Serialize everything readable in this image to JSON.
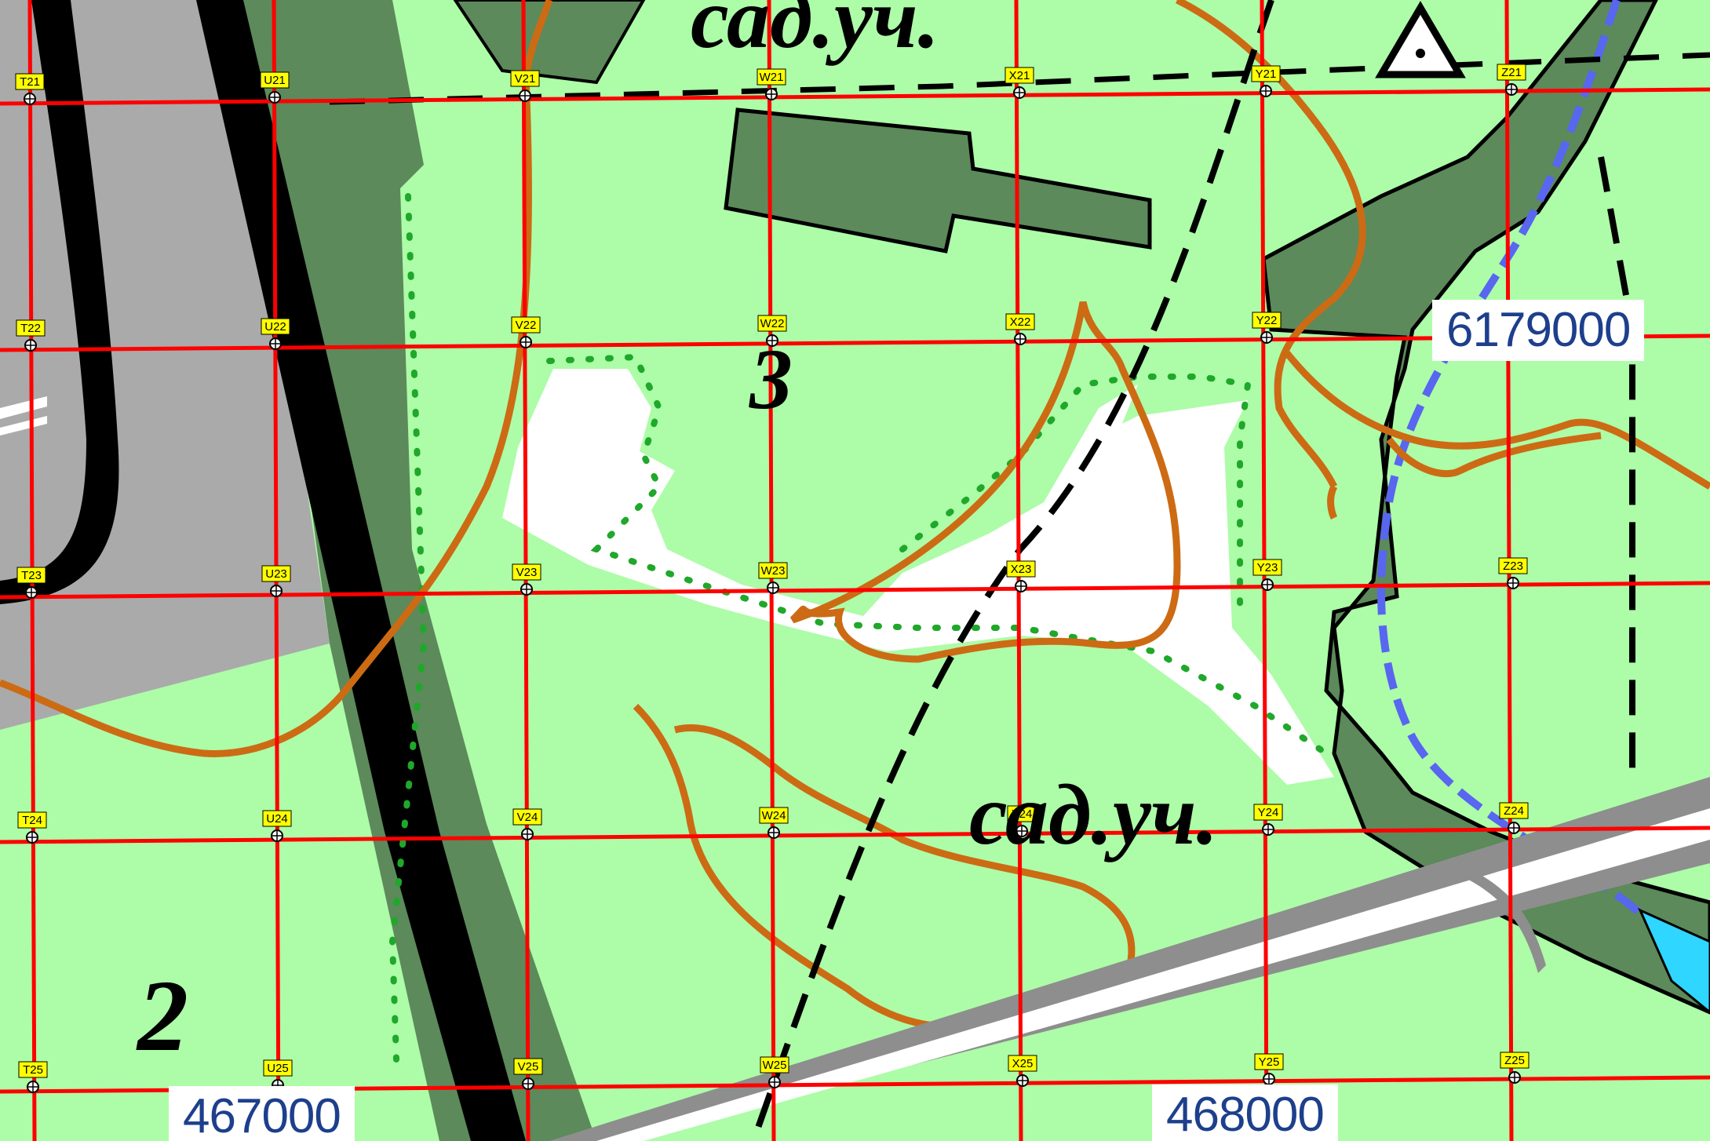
{
  "map": {
    "colors": {
      "field": "#adfca8",
      "forest": "#5c8a5b",
      "gray": "#aaaaaa",
      "road_gray": "#8e8e8e",
      "white": "#ffffff",
      "grid": "#ff0000",
      "contour": "#cc6b14",
      "boundary_dots": "#1fa82a",
      "water": "#2fd6ff",
      "stream": "#5866f0",
      "label_bg": "#ffff00"
    },
    "easting_labels": {
      "left": "467000",
      "right": "468000"
    },
    "northing_label": "6179000",
    "map_text": {
      "top": "сад.уч.",
      "bottom": "сад.уч.",
      "num_3": "3",
      "num_2": "2"
    },
    "grid_cells": [
      "T21",
      "U21",
      "V21",
      "W21",
      "X21",
      "Y21",
      "Z21",
      "T22",
      "U22",
      "V22",
      "W22",
      "X22",
      "Y22",
      "Z22",
      "T23",
      "U23",
      "V23",
      "W23",
      "X23",
      "Y23",
      "Z23",
      "T24",
      "U24",
      "V24",
      "W24",
      "X24",
      "Y24",
      "Z24",
      "T25",
      "U25",
      "V25",
      "W25",
      "X25",
      "Y25",
      "Z25"
    ],
    "icons": {
      "triangle": "survey-triangle-icon",
      "marker": "crosshair-marker-icon"
    }
  }
}
